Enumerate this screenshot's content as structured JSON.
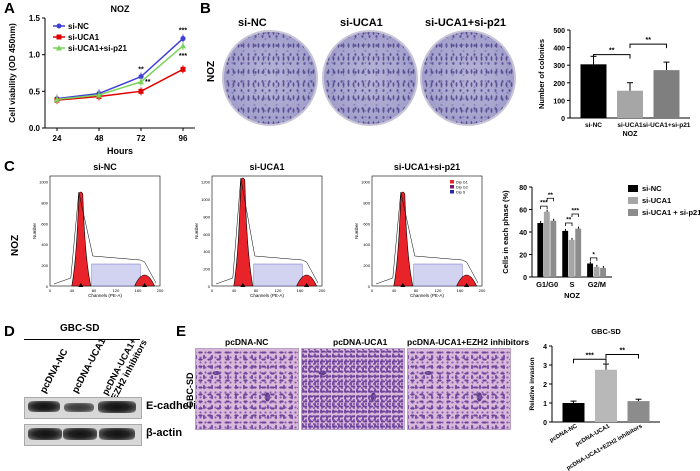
{
  "panels": {
    "a": "A",
    "b": "B",
    "c": "C",
    "d": "D",
    "e": "E"
  },
  "cell_line": "NOZ",
  "panelA": {
    "title": "NOZ",
    "legend": [
      "si-NC",
      "si-UCA1",
      "si-UCA1+si-p21"
    ],
    "sig_72": [
      "**",
      "**"
    ],
    "sig_96": [
      "***",
      "***"
    ]
  },
  "panelB": {
    "dish_labels": [
      "si-NC",
      "si-UCA1",
      "si-UCA1+si-p21"
    ],
    "row_label": "NOZ",
    "sig": [
      "**",
      "**"
    ]
  },
  "panelC": {
    "titles": [
      "si-NC",
      "si-UCA1",
      "si-UCA1+si-p21"
    ],
    "row_label": "NOZ",
    "x_axis_label": "Channels (PE-A)",
    "y_axis_label": "Number",
    "phase_legend": [
      "Dip G1",
      "Dip G2",
      "Dip S"
    ],
    "x_ticks": [
      "0",
      "40",
      "80",
      "120",
      "160",
      "200"
    ],
    "y_ticks_1": [
      "0",
      "200",
      "400",
      "600",
      "800",
      "1000"
    ],
    "y_ticks_2": [
      "0",
      "200",
      "400",
      "600",
      "800",
      "1000",
      "1200"
    ],
    "y_ticks_3": [
      "0",
      "200",
      "400",
      "600",
      "800",
      "1000"
    ],
    "bar_legend": [
      "si-NC",
      "si-UCA1",
      "si-UCA1 + si-p21"
    ],
    "sig": [
      "***",
      "**",
      "**",
      "***",
      "*"
    ]
  },
  "panelD": {
    "title": "GBC-SD",
    "lanes": [
      "pcDNA-NC",
      "pcDNA-UCA1",
      "pcDNA-UCA1+\nEZH2 inhibitors"
    ],
    "bands": [
      "E-cadherin",
      "β-actin"
    ]
  },
  "panelE": {
    "row_label": "GBC-SD",
    "titles": [
      "pcDNA-NC",
      "pcDNA-UCA1",
      "pcDNA-UCA1+EZH2 inhibitors"
    ],
    "sig": [
      "***",
      "**"
    ]
  },
  "colors": {
    "black": "#000000",
    "gray": "#a6a6a6",
    "lightgray": "#d9d9d9",
    "red": "#e00000",
    "blue": "#3f3fd8",
    "green": "#7ad35a",
    "g1": "#e8232a",
    "s": "#2a2aa8"
  },
  "chart_data": [
    {
      "type": "line",
      "title": "NOZ",
      "xlabel": "Hours",
      "ylabel": "Cell viability (OD 450nm)",
      "x": [
        24,
        48,
        72,
        96
      ],
      "ylim": [
        0.0,
        1.5
      ],
      "yticks": [
        "0.0",
        "0.5",
        "1.0",
        "1.5"
      ],
      "series": [
        {
          "name": "si-NC",
          "values": [
            0.4,
            0.47,
            0.7,
            1.22
          ]
        },
        {
          "name": "si-UCA1",
          "values": [
            0.38,
            0.43,
            0.5,
            0.8
          ]
        },
        {
          "name": "si-UCA1+si-p21",
          "values": [
            0.39,
            0.45,
            0.63,
            1.12
          ]
        }
      ]
    },
    {
      "type": "bar",
      "title": "",
      "xlabel": "NOZ",
      "ylabel": "Number of colonies",
      "categories": [
        "si-NC",
        "si-UCA1",
        "si-UCA1+si-p21"
      ],
      "values": [
        305,
        155,
        272
      ],
      "ylim": [
        0,
        500
      ],
      "yticks": [
        "0",
        "100",
        "200",
        "300",
        "400",
        "500"
      ]
    },
    {
      "type": "bar",
      "title": "",
      "xlabel": "NOZ",
      "ylabel": "Cells in each phase (%)",
      "categories": [
        "G1/G0",
        "S",
        "G2/M"
      ],
      "ylim": [
        0,
        80
      ],
      "yticks": [
        "0",
        "20",
        "40",
        "60",
        "80"
      ],
      "series": [
        {
          "name": "si-NC",
          "values": [
            48,
            41,
            12
          ]
        },
        {
          "name": "si-UCA1",
          "values": [
            58,
            33,
            9
          ]
        },
        {
          "name": "si-UCA1 + si-p21",
          "values": [
            50,
            43,
            8
          ]
        }
      ]
    },
    {
      "type": "bar",
      "title": "GBC-SD",
      "xlabel": "",
      "ylabel": "Relative invasion",
      "categories": [
        "pcDNA-NC",
        "pcDNA-UCA1",
        "pcDNA-UCA1+EZH2 inhibitors"
      ],
      "values": [
        1.0,
        2.75,
        1.1
      ],
      "ylim": [
        0,
        4
      ],
      "yticks": [
        "0",
        "1",
        "2",
        "3",
        "4"
      ]
    }
  ]
}
